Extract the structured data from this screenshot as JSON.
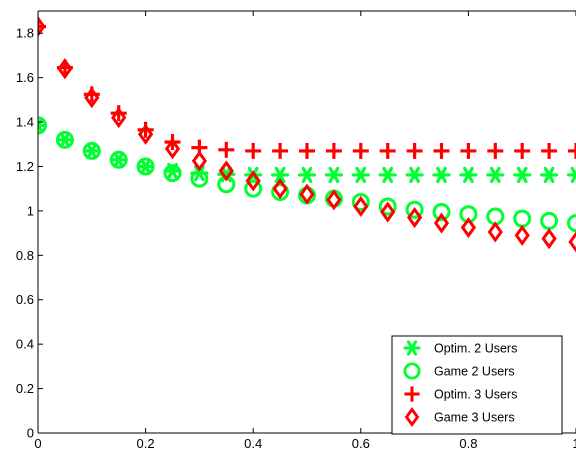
{
  "chart_data": {
    "type": "scatter",
    "title": "",
    "xlabel": "",
    "ylabel": "",
    "xlim": [
      0,
      1
    ],
    "ylim": [
      0,
      1.9
    ],
    "xticks": [
      0,
      0.2,
      0.4,
      0.6,
      0.8,
      1
    ],
    "xtick_labels": [
      "0",
      "0.2",
      "0.4",
      "0.6",
      "0.8",
      "1"
    ],
    "yticks": [
      0,
      0.2,
      0.4,
      0.6,
      0.8,
      1,
      1.2,
      1.4,
      1.6,
      1.8
    ],
    "ytick_labels": [
      "0",
      "0.2",
      "0.4",
      "0.6",
      "0.8",
      "1",
      "1.2",
      "1.4",
      "1.6",
      "1.8"
    ],
    "grid": false,
    "legend_position": "bottom-right",
    "x": [
      0,
      0.05,
      0.1,
      0.15,
      0.2,
      0.25,
      0.3,
      0.35,
      0.4,
      0.45,
      0.5,
      0.55,
      0.6,
      0.65,
      0.7,
      0.75,
      0.8,
      0.85,
      0.9,
      0.95,
      1
    ],
    "series": [
      {
        "name": "Optim. 2 Users",
        "marker": "asterisk",
        "color": "#00ff33",
        "values": [
          1.385,
          1.32,
          1.27,
          1.23,
          1.2,
          1.18,
          1.17,
          1.165,
          1.162,
          1.162,
          1.162,
          1.162,
          1.162,
          1.162,
          1.162,
          1.162,
          1.162,
          1.162,
          1.162,
          1.162,
          1.162
        ]
      },
      {
        "name": "Game 2 Users",
        "marker": "circle",
        "color": "#00ff33",
        "values": [
          1.385,
          1.32,
          1.27,
          1.23,
          1.2,
          1.17,
          1.145,
          1.12,
          1.1,
          1.085,
          1.07,
          1.055,
          1.04,
          1.02,
          1.005,
          0.995,
          0.985,
          0.975,
          0.965,
          0.955,
          0.945
        ]
      },
      {
        "name": "Optim. 3 Users",
        "marker": "plus",
        "color": "#ff0000",
        "values": [
          1.83,
          1.645,
          1.525,
          1.44,
          1.365,
          1.31,
          1.285,
          1.275,
          1.27,
          1.27,
          1.27,
          1.27,
          1.27,
          1.27,
          1.27,
          1.27,
          1.27,
          1.27,
          1.27,
          1.27,
          1.27
        ]
      },
      {
        "name": "Game 3 Users",
        "marker": "diamond",
        "color": "#ff0000",
        "values": [
          1.83,
          1.64,
          1.51,
          1.42,
          1.345,
          1.28,
          1.225,
          1.18,
          1.135,
          1.1,
          1.075,
          1.05,
          1.02,
          0.995,
          0.97,
          0.945,
          0.925,
          0.905,
          0.89,
          0.875,
          0.86
        ]
      }
    ]
  }
}
